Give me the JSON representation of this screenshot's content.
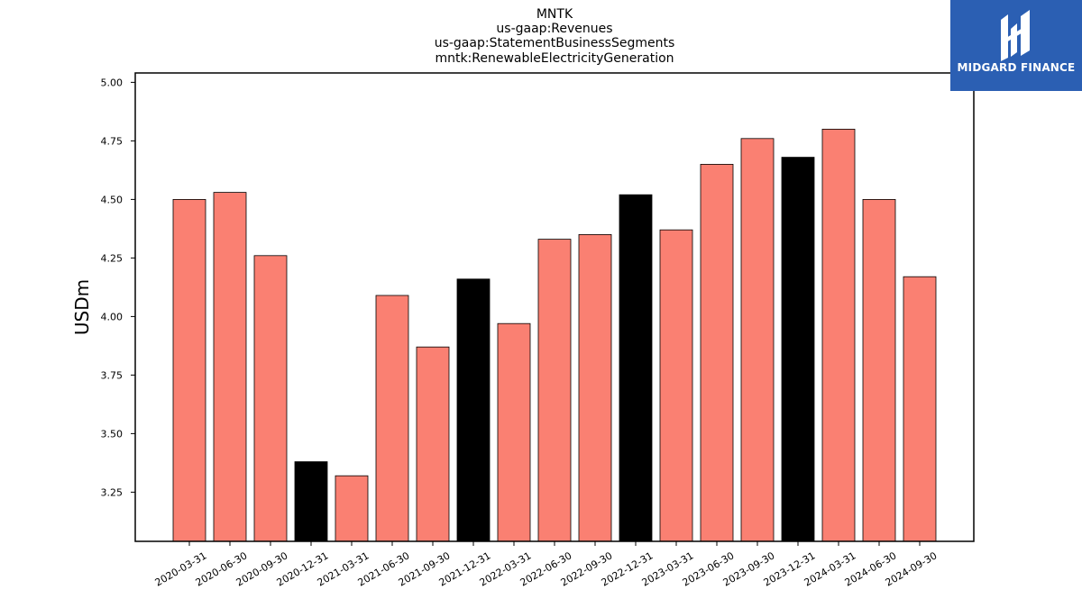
{
  "chart_data": {
    "type": "bar",
    "title_lines": [
      "MNTK",
      "us-gaap:Revenues",
      "us-gaap:StatementBusinessSegments",
      "mntk:RenewableElectricityGeneration"
    ],
    "xlabel": "",
    "ylabel": "USDm",
    "ylim": [
      3.04,
      5.04
    ],
    "yticks": [
      "3.25",
      "3.50",
      "3.75",
      "4.00",
      "4.25",
      "4.50",
      "4.75",
      "5.00"
    ],
    "categories": [
      "2020-03-31",
      "2020-06-30",
      "2020-09-30",
      "2020-12-31",
      "2021-03-31",
      "2021-06-30",
      "2021-09-30",
      "2021-12-31",
      "2022-03-31",
      "2022-06-30",
      "2022-09-30",
      "2022-12-31",
      "2023-03-31",
      "2023-06-30",
      "2023-09-30",
      "2023-12-31",
      "2024-03-31",
      "2024-06-30",
      "2024-09-30"
    ],
    "values": [
      4.5,
      4.53,
      4.26,
      3.38,
      3.32,
      4.09,
      3.87,
      4.16,
      3.97,
      4.33,
      4.35,
      4.52,
      4.37,
      4.65,
      4.76,
      4.68,
      4.8,
      4.5,
      4.17
    ],
    "bar_colors": [
      "#fa8072",
      "#fa8072",
      "#fa8072",
      "#000000",
      "#fa8072",
      "#fa8072",
      "#fa8072",
      "#000000",
      "#fa8072",
      "#fa8072",
      "#fa8072",
      "#000000",
      "#fa8072",
      "#fa8072",
      "#fa8072",
      "#000000",
      "#fa8072",
      "#fa8072",
      "#fa8072"
    ],
    "grid": false
  },
  "logo": {
    "text": "MIDGARD FINANCE",
    "background": "#2b5fb3",
    "icon": "midgard-logo-icon"
  }
}
